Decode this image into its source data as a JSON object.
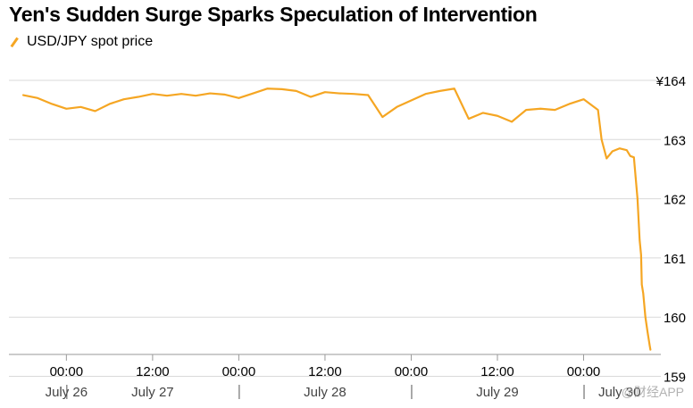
{
  "title": "Yen's Sudden Surge Sparks Speculation of Intervention",
  "watermark": "@财经APP",
  "colors": {
    "line": "#f5a623",
    "grid": "#d9d9d9",
    "axis": "#9a9a9a"
  },
  "chart_data": {
    "type": "line",
    "title": "Yen's Sudden Surge Sparks Speculation of Intervention",
    "legend": {
      "position": "top-left",
      "entries": [
        "USD/JPY spot price"
      ]
    },
    "series": [
      {
        "name": "USD/JPY spot price",
        "x": [
          -6,
          -4,
          -2,
          0,
          2,
          4,
          6,
          8,
          10,
          12,
          14,
          16,
          18,
          20,
          22,
          24,
          26,
          28,
          30,
          32,
          34,
          36,
          38,
          40,
          42,
          44,
          46,
          48,
          50,
          52,
          54,
          56,
          58,
          60,
          62,
          64,
          66,
          68,
          70,
          72,
          74,
          74.5,
          75.2,
          76,
          77,
          78,
          78.5,
          79,
          79.5,
          79.8,
          80,
          80.1,
          80.3,
          80.6,
          80.9,
          81.2,
          81.3
        ],
        "y": [
          163.75,
          163.7,
          163.6,
          163.52,
          163.55,
          163.48,
          163.6,
          163.68,
          163.72,
          163.77,
          163.74,
          163.77,
          163.74,
          163.78,
          163.76,
          163.7,
          163.78,
          163.86,
          163.85,
          163.82,
          163.72,
          163.8,
          163.78,
          163.77,
          163.75,
          163.38,
          163.55,
          163.66,
          163.77,
          163.82,
          163.86,
          163.35,
          163.45,
          163.4,
          163.3,
          163.5,
          163.52,
          163.5,
          163.6,
          163.68,
          163.5,
          163.0,
          162.68,
          162.8,
          162.85,
          162.82,
          162.72,
          162.7,
          162.0,
          161.3,
          161.05,
          160.55,
          160.4,
          160.0,
          159.75,
          159.52,
          159.45
        ]
      }
    ],
    "ylim": [
      159.4,
      164.15
    ],
    "yticks": [
      159,
      160,
      161,
      162,
      163,
      164
    ],
    "ytick_labels": [
      "159",
      "160",
      "161",
      "162",
      "163",
      "¥164"
    ],
    "xlim": [
      -8,
      83
    ],
    "xticks": [
      0,
      12,
      24,
      36,
      48,
      60,
      72
    ],
    "xtick_labels": [
      "00:00",
      "12:00",
      "00:00",
      "12:00",
      "00:00",
      "12:00",
      "00:00"
    ],
    "date_labels": [
      {
        "x": 0,
        "label": "July 26"
      },
      {
        "x": 12,
        "label": "July 27"
      },
      {
        "x": 36,
        "label": "July 28"
      },
      {
        "x": 60,
        "label": "July 29"
      },
      {
        "x": 77,
        "label": "July 30"
      }
    ],
    "day_separators": [
      0,
      24,
      48,
      72
    ],
    "grid": true,
    "xlabel": "",
    "ylabel": ""
  }
}
